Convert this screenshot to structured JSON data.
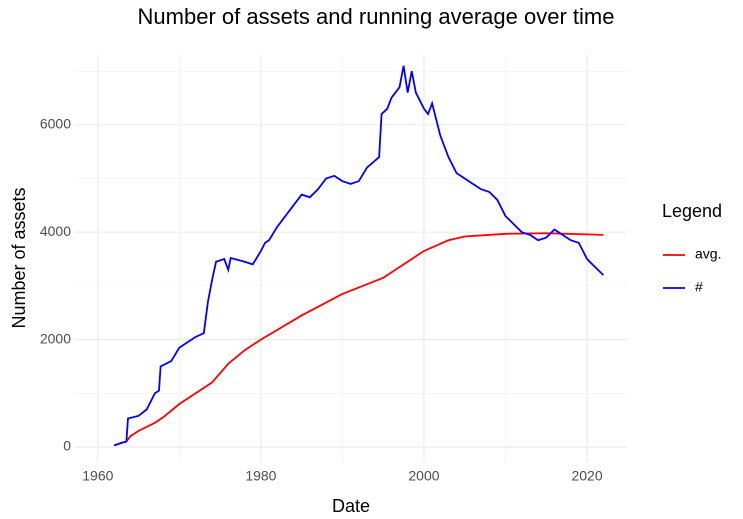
{
  "chart_data": {
    "type": "line",
    "title": "Number of assets and running average over time",
    "x_label": "Date",
    "y_label": "Number of assets",
    "legend_title": "Legend",
    "legend_position": "right",
    "grid": true,
    "xlim": [
      1957.2,
      2024.9
    ],
    "ylim": [
      -280,
      7300
    ],
    "xticks": [
      1960,
      1980,
      2000,
      2020
    ],
    "yticks": [
      0,
      2000,
      4000,
      6000
    ],
    "xminor": [
      1970,
      1990,
      2010
    ],
    "yminor": [
      1000,
      3000,
      5000,
      7000
    ],
    "series": [
      {
        "name": "avg.",
        "color": "#ff0000",
        "x": [
          1962,
          1963,
          1963.5,
          1964,
          1965,
          1967,
          1968,
          1970,
          1972,
          1974,
          1976,
          1978,
          1980,
          1985,
          1990,
          1995,
          2000,
          2003,
          2005,
          2010,
          2015,
          2020,
          2022
        ],
        "values": [
          30,
          80,
          100,
          200,
          300,
          450,
          550,
          800,
          1000,
          1200,
          1550,
          1800,
          2000,
          2450,
          2850,
          3150,
          3650,
          3850,
          3920,
          3970,
          3980,
          3960,
          3950
        ]
      },
      {
        "name": "#",
        "color": "#0000ff",
        "x": [
          1962,
          1963,
          1963.5,
          1963.7,
          1965,
          1966,
          1967,
          1967.5,
          1967.7,
          1969,
          1970,
          1971,
          1972,
          1973,
          1973.5,
          1974,
          1974.5,
          1975.5,
          1976,
          1976.3,
          1978,
          1979,
          1980,
          1980.5,
          1981,
          1982,
          1983,
          1984,
          1985,
          1986,
          1987,
          1988,
          1989,
          1990,
          1991,
          1992,
          1993,
          1994.5,
          1994.8,
          1995.5,
          1996,
          1997,
          1997.5,
          1998,
          1998.5,
          1999,
          2000,
          2000.5,
          2001,
          2002,
          2003,
          2004,
          2005,
          2006,
          2007,
          2008,
          2009,
          2010,
          2011,
          2012,
          2013,
          2014,
          2015,
          2016,
          2017,
          2018,
          2019,
          2020,
          2021,
          2022
        ],
        "values": [
          30,
          80,
          100,
          530,
          580,
          700,
          1000,
          1050,
          1500,
          1600,
          1850,
          1950,
          2050,
          2120,
          2700,
          3100,
          3450,
          3500,
          3300,
          3520,
          3450,
          3400,
          3650,
          3800,
          3850,
          4100,
          4300,
          4500,
          4700,
          4650,
          4800,
          5000,
          5050,
          4950,
          4900,
          4950,
          5200,
          5400,
          6200,
          6300,
          6500,
          6700,
          7100,
          6600,
          7000,
          6600,
          6300,
          6200,
          6400,
          5800,
          5400,
          5100,
          5000,
          4900,
          4800,
          4750,
          4600,
          4300,
          4150,
          4000,
          3950,
          3850,
          3900,
          4050,
          3950,
          3850,
          3800,
          3500,
          3350,
          3200
        ]
      }
    ]
  }
}
